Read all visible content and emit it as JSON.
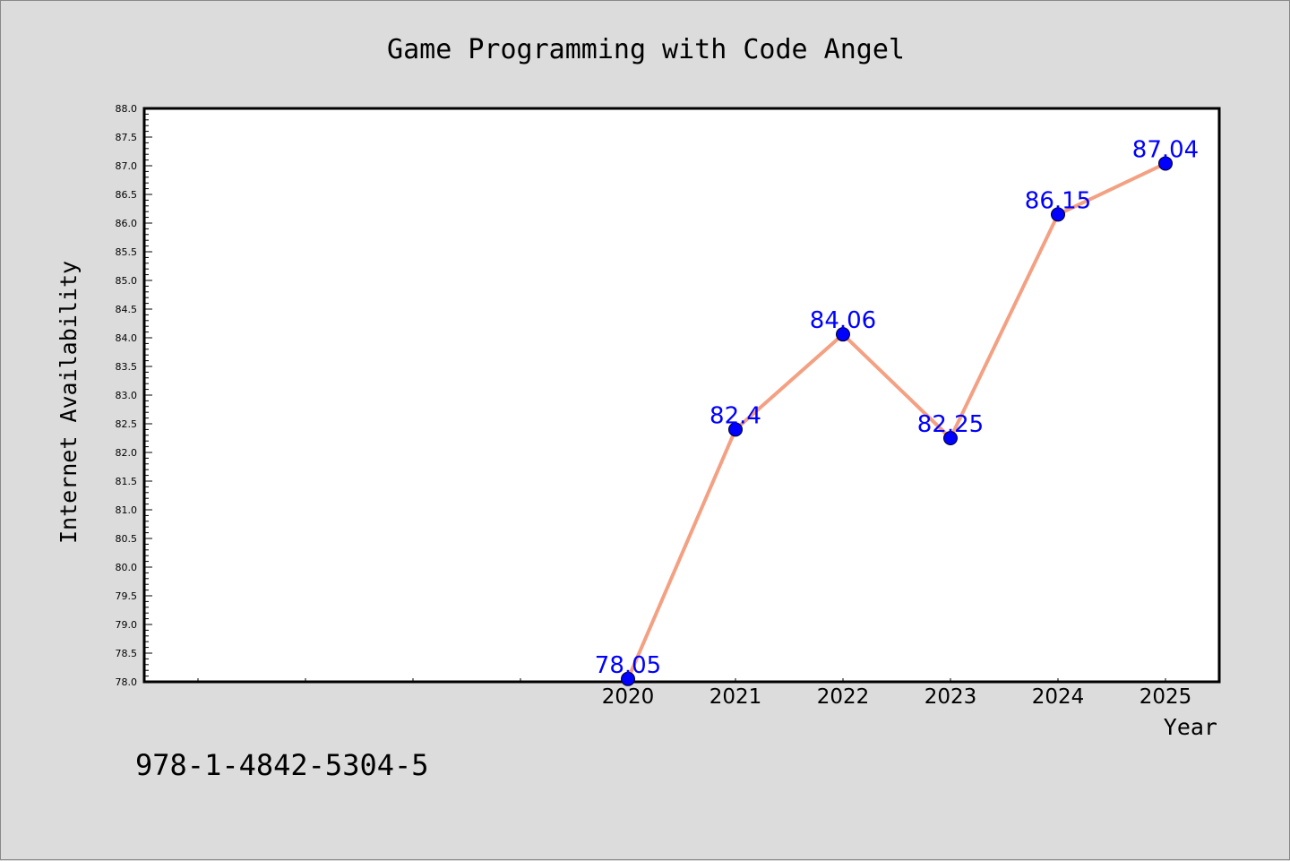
{
  "chart_data": {
    "type": "line",
    "title": "Game Programming with Code Angel",
    "xlabel": "Year",
    "ylabel": "Internet Availability",
    "categories": [
      "2020",
      "2021",
      "2022",
      "2023",
      "2024",
      "2025"
    ],
    "series": [
      {
        "values": [
          78.05,
          82.4,
          84.06,
          82.25,
          86.15,
          87.04
        ],
        "data_labels": [
          "78.05",
          "82.4",
          "84.06",
          "82.25",
          "86.15",
          "87.04"
        ]
      }
    ],
    "ylim": [
      78.0,
      88.0
    ],
    "y_ticks": [
      "78.0",
      "78.5",
      "79.0",
      "79.5",
      "80.0",
      "80.5",
      "81.0",
      "81.5",
      "82.0",
      "82.5",
      "83.0",
      "83.5",
      "84.0",
      "84.5",
      "85.0",
      "85.5",
      "86.0",
      "86.5",
      "87.0",
      "87.5",
      "88.0"
    ],
    "grid": false,
    "legend": "none",
    "colors": {
      "line": "#f4a082",
      "marker": "#0000ff",
      "label": "#0000ff",
      "background": "#dcdcdc",
      "plot_background": "#ffffff"
    }
  },
  "footer": {
    "isbn": "978-1-4842-5304-5"
  }
}
